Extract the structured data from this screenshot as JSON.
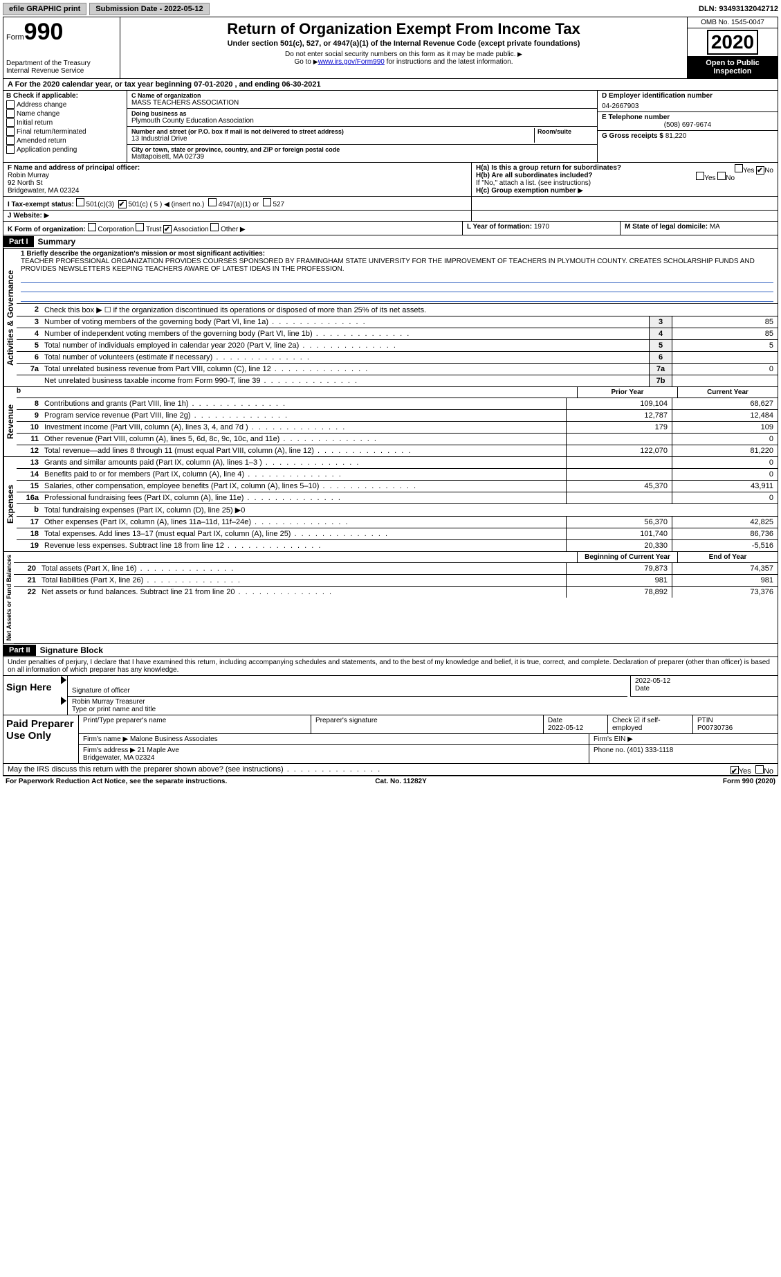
{
  "topbar": {
    "efile": "efile GRAPHIC print",
    "submission_label": "Submission Date - 2022-05-12",
    "dln": "DLN: 93493132042712"
  },
  "header": {
    "form_word": "Form",
    "form_num": "990",
    "dept": "Department of the Treasury\nInternal Revenue Service",
    "title": "Return of Organization Exempt From Income Tax",
    "sub": "Under section 501(c), 527, or 4947(a)(1) of the Internal Revenue Code (except private foundations)",
    "note1": "Do not enter social security numbers on this form as it may be made public.",
    "note2_pre": "Go to ",
    "note2_link": "www.irs.gov/Form990",
    "note2_post": " for instructions and the latest information.",
    "omb": "OMB No. 1545-0047",
    "year": "2020",
    "open": "Open to Public Inspection"
  },
  "period": {
    "line_a": "For the 2020 calendar year, or tax year beginning 07-01-2020    , and ending 06-30-2021"
  },
  "box_b": {
    "label": "B Check if applicable:",
    "items": [
      "Address change",
      "Name change",
      "Initial return",
      "Final return/terminated",
      "Amended return",
      "Application pending"
    ]
  },
  "box_c": {
    "name_lbl": "C Name of organization",
    "name": "MASS TEACHERS ASSOCIATION",
    "dba_lbl": "Doing business as",
    "dba": "Plymouth County Education Association",
    "addr_lbl": "Number and street (or P.O. box if mail is not delivered to street address)",
    "room_lbl": "Room/suite",
    "addr": "13 Industrial Drive",
    "city_lbl": "City or town, state or province, country, and ZIP or foreign postal code",
    "city": "Mattapoisett, MA  02739"
  },
  "box_d": {
    "ein_lbl": "D Employer identification number",
    "ein": "04-2667903",
    "phone_lbl": "E Telephone number",
    "phone": "(508) 697-9674",
    "gross_lbl": "G Gross receipts $",
    "gross": "81,220"
  },
  "box_f": {
    "lbl": "F  Name and address of principal officer:",
    "name": "Robin Murray",
    "addr1": "92 North St",
    "addr2": "Bridgewater, MA  02324"
  },
  "box_h": {
    "ha": "H(a)  Is this a group return for subordinates?",
    "hb": "H(b)  Are all subordinates included?",
    "hb_note": "If \"No,\" attach a list. (see instructions)",
    "hc": "H(c)  Group exemption number",
    "yes": "Yes",
    "no": "No"
  },
  "box_i": {
    "lbl": "I   Tax-exempt status:",
    "o1": "501(c)(3)",
    "o2": "501(c) ( 5 )",
    "o2_post": "(insert no.)",
    "o3": "4947(a)(1) or",
    "o4": "527"
  },
  "box_j": {
    "lbl": "J   Website:"
  },
  "box_k": {
    "lbl": "K Form of organization:",
    "o1": "Corporation",
    "o2": "Trust",
    "o3": "Association",
    "o4": "Other"
  },
  "box_l": {
    "lbl": "L Year of formation:",
    "val": "1970"
  },
  "box_m": {
    "lbl": "M State of legal domicile:",
    "val": "MA"
  },
  "part1": {
    "hdr": "Part I",
    "title": "Summary",
    "l1_lbl": "1  Briefly describe the organization's mission or most significant activities:",
    "l1_txt": "TEACHER PROFESSIONAL ORGANIZATION PROVIDES COURSES SPONSORED BY FRAMINGHAM STATE UNIVERSITY FOR THE IMPROVEMENT OF TEACHERS IN PLYMOUTH COUNTY. CREATES SCHOLARSHIP FUNDS AND PROVIDES NEWSLETTERS KEEPING TEACHERS AWARE OF LATEST IDEAS IN THE PROFESSION.",
    "l2": "Check this box ▶ ☐ if the organization discontinued its operations or disposed of more than 25% of its net assets.",
    "rows_gov": [
      {
        "n": "3",
        "t": "Number of voting members of the governing body (Part VI, line 1a)",
        "b": "3",
        "v": "85"
      },
      {
        "n": "4",
        "t": "Number of independent voting members of the governing body (Part VI, line 1b)",
        "b": "4",
        "v": "85"
      },
      {
        "n": "5",
        "t": "Total number of individuals employed in calendar year 2020 (Part V, line 2a)",
        "b": "5",
        "v": "5"
      },
      {
        "n": "6",
        "t": "Total number of volunteers (estimate if necessary)",
        "b": "6",
        "v": ""
      },
      {
        "n": "7a",
        "t": "Total unrelated business revenue from Part VIII, column (C), line 12",
        "b": "7a",
        "v": "0"
      },
      {
        "n": "",
        "t": "Net unrelated business taxable income from Form 990-T, line 39",
        "b": "7b",
        "v": ""
      }
    ],
    "hdr_prior": "Prior Year",
    "hdr_curr": "Current Year",
    "rows_rev": [
      {
        "n": "8",
        "t": "Contributions and grants (Part VIII, line 1h)",
        "p": "109,104",
        "c": "68,627"
      },
      {
        "n": "9",
        "t": "Program service revenue (Part VIII, line 2g)",
        "p": "12,787",
        "c": "12,484"
      },
      {
        "n": "10",
        "t": "Investment income (Part VIII, column (A), lines 3, 4, and 7d )",
        "p": "179",
        "c": "109"
      },
      {
        "n": "11",
        "t": "Other revenue (Part VIII, column (A), lines 5, 6d, 8c, 9c, 10c, and 11e)",
        "p": "",
        "c": "0"
      },
      {
        "n": "12",
        "t": "Total revenue—add lines 8 through 11 (must equal Part VIII, column (A), line 12)",
        "p": "122,070",
        "c": "81,220"
      }
    ],
    "rows_exp": [
      {
        "n": "13",
        "t": "Grants and similar amounts paid (Part IX, column (A), lines 1–3 )",
        "p": "",
        "c": "0"
      },
      {
        "n": "14",
        "t": "Benefits paid to or for members (Part IX, column (A), line 4)",
        "p": "",
        "c": "0"
      },
      {
        "n": "15",
        "t": "Salaries, other compensation, employee benefits (Part IX, column (A), lines 5–10)",
        "p": "45,370",
        "c": "43,911"
      },
      {
        "n": "16a",
        "t": "Professional fundraising fees (Part IX, column (A), line 11e)",
        "p": "",
        "c": "0"
      },
      {
        "n": "b",
        "t": "Total fundraising expenses (Part IX, column (D), line 25) ▶0",
        "p": "—",
        "c": "—"
      },
      {
        "n": "17",
        "t": "Other expenses (Part IX, column (A), lines 11a–11d, 11f–24e)",
        "p": "56,370",
        "c": "42,825"
      },
      {
        "n": "18",
        "t": "Total expenses. Add lines 13–17 (must equal Part IX, column (A), line 25)",
        "p": "101,740",
        "c": "86,736"
      },
      {
        "n": "19",
        "t": "Revenue less expenses. Subtract line 18 from line 12",
        "p": "20,330",
        "c": "-5,516"
      }
    ],
    "hdr_beg": "Beginning of Current Year",
    "hdr_end": "End of Year",
    "rows_net": [
      {
        "n": "20",
        "t": "Total assets (Part X, line 16)",
        "p": "79,873",
        "c": "74,357"
      },
      {
        "n": "21",
        "t": "Total liabilities (Part X, line 26)",
        "p": "981",
        "c": "981"
      },
      {
        "n": "22",
        "t": "Net assets or fund balances. Subtract line 21 from line 20",
        "p": "78,892",
        "c": "73,376"
      }
    ],
    "tab_gov": "Activities & Governance",
    "tab_rev": "Revenue",
    "tab_exp": "Expenses",
    "tab_net": "Net Assets or Fund Balances"
  },
  "part2": {
    "hdr": "Part II",
    "title": "Signature Block",
    "decl": "Under penalties of perjury, I declare that I have examined this return, including accompanying schedules and statements, and to the best of my knowledge and belief, it is true, correct, and complete. Declaration of preparer (other than officer) is based on all information of which preparer has any knowledge.",
    "sign_here": "Sign Here",
    "sig_officer": "Signature of officer",
    "sig_date": "2022-05-12",
    "date_lbl": "Date",
    "sig_name": "Robin Murray  Treasurer",
    "sig_name_lbl": "Type or print name and title",
    "paid": "Paid Preparer Use Only",
    "p_name_lbl": "Print/Type preparer's name",
    "p_sig_lbl": "Preparer's signature",
    "p_date_lbl": "Date",
    "p_date": "2022-05-12",
    "p_check": "Check ☑ if self-employed",
    "p_ptin_lbl": "PTIN",
    "p_ptin": "P00730736",
    "firm_name_lbl": "Firm's name   ▶",
    "firm_name": "Malone Business Associates",
    "firm_ein_lbl": "Firm's EIN ▶",
    "firm_addr_lbl": "Firm's address ▶",
    "firm_addr": "21 Maple Ave\nBridgewater, MA  02324",
    "firm_phone_lbl": "Phone no.",
    "firm_phone": "(401) 333-1118",
    "discuss": "May the IRS discuss this return with the preparer shown above? (see instructions)"
  },
  "footer": {
    "left": "For Paperwork Reduction Act Notice, see the separate instructions.",
    "mid": "Cat. No. 11282Y",
    "right": "Form 990 (2020)"
  }
}
